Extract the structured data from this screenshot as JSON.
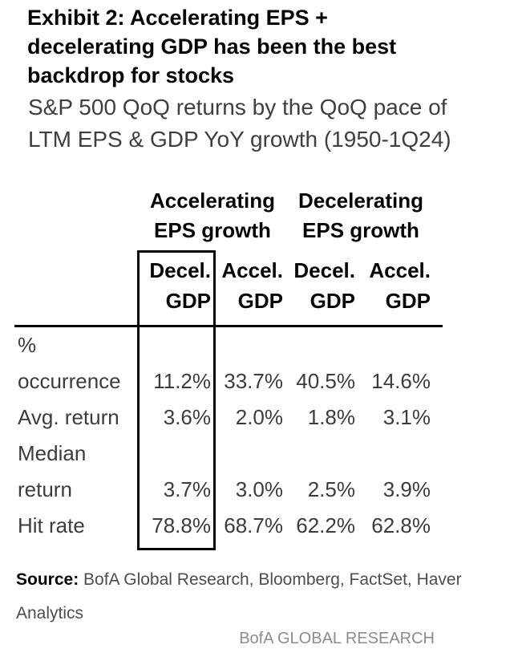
{
  "exhibit": {
    "title": "Exhibit 2: Accelerating EPS +\ndecelerating GDP has been the best\nbackdrop for stocks",
    "subtitle": "S&P 500 QoQ returns by the QoQ pace of\nLTM EPS & GDP YoY growth (1950-1Q24)"
  },
  "table": {
    "group_headers": [
      "Accelerating\nEPS growth",
      "Decelerating\nEPS growth"
    ],
    "column_headers": [
      "Decel.\nGDP",
      "Accel.\nGDP",
      "Decel.\nGDP",
      "Accel.\nGDP"
    ],
    "rows": [
      {
        "label": "%\noccurrence",
        "values": [
          "11.2%",
          "33.7%",
          "40.5%",
          "14.6%"
        ]
      },
      {
        "label": "Avg. return",
        "values": [
          "3.6%",
          "2.0%",
          "1.8%",
          "3.1%"
        ]
      },
      {
        "label": "Median\nreturn",
        "values": [
          "3.7%",
          "3.0%",
          "2.5%",
          "3.9%"
        ]
      },
      {
        "label": "Hit rate",
        "values": [
          "78.8%",
          "68.7%",
          "62.2%",
          "62.8%"
        ]
      }
    ],
    "highlighted_column": "Accelerating EPS growth / Decel. GDP"
  },
  "footer": {
    "source_label": "Source:",
    "source_text": "BofA Global Research, Bloomberg, FactSet, Haver Analytics",
    "brand": "BofA GLOBAL RESEARCH"
  },
  "colors": {
    "background": "#ffffff",
    "heading_text": "#050505",
    "body_text": "#3c3c3c",
    "source_text": "#4d4d4d",
    "brand_text": "#8c8c8c",
    "rule_and_box": "#000000"
  },
  "chart_data": {
    "type": "table",
    "title": "Exhibit 2: Accelerating EPS + decelerating GDP has been the best backdrop for stocks",
    "subtitle": "S&P 500 QoQ returns by the QoQ pace of LTM EPS & GDP YoY growth (1950-1Q24)",
    "column_groups": [
      "Accelerating EPS growth",
      "Accelerating EPS growth",
      "Decelerating EPS growth",
      "Decelerating EPS growth"
    ],
    "columns": [
      "Decel. GDP",
      "Accel. GDP",
      "Decel. GDP",
      "Accel. GDP"
    ],
    "metrics": [
      "% occurrence",
      "Avg. return",
      "Median return",
      "Hit rate"
    ],
    "values_pct": [
      [
        11.2,
        33.7,
        40.5,
        14.6
      ],
      [
        3.6,
        2.0,
        1.8,
        3.1
      ],
      [
        3.7,
        3.0,
        2.5,
        3.9
      ],
      [
        78.8,
        68.7,
        62.2,
        62.8
      ]
    ],
    "highlighted_column": "Accelerating EPS growth / Decel. GDP",
    "source": "BofA Global Research, Bloomberg, FactSet, Haver Analytics",
    "branding": "BofA GLOBAL RESEARCH"
  }
}
